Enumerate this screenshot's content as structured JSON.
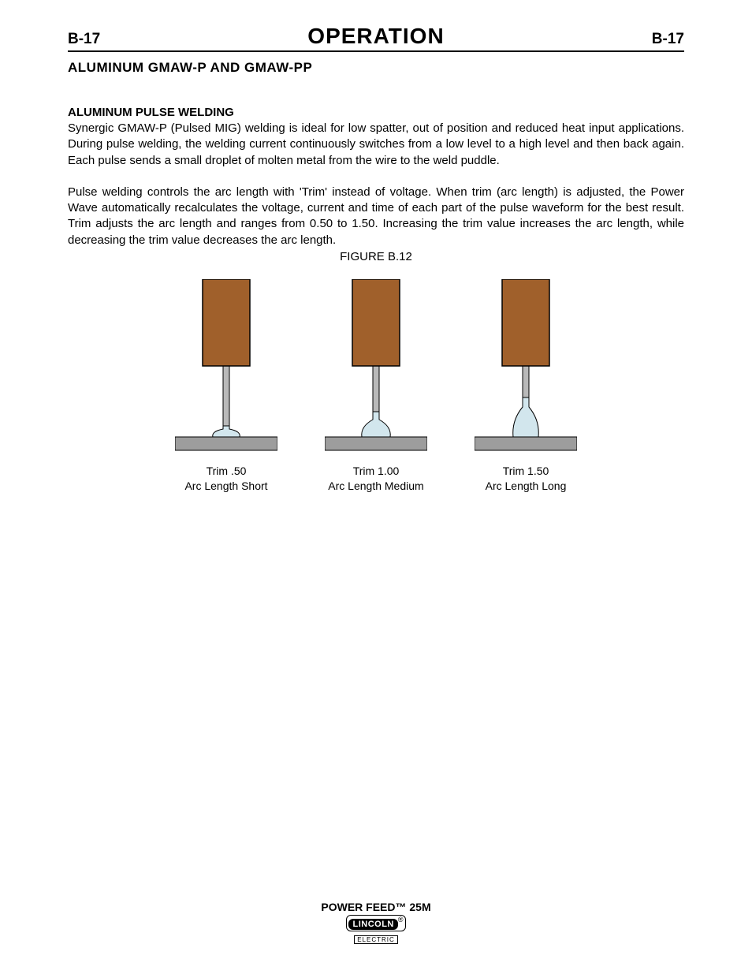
{
  "header": {
    "left_code": "B-17",
    "title": "OPERATION",
    "right_code": "B-17"
  },
  "section": {
    "heading": "ALUMINUM GMAW-P AND GMAW-PP",
    "sub_heading": "ALUMINUM PULSE WELDING",
    "paragraph1": "Synergic GMAW-P (Pulsed MIG) welding is ideal for low spatter, out of position and reduced heat input applications. During pulse welding, the welding current continuously switches from a low level to a high level and then back again.  Each pulse sends a small droplet of molten metal from the wire to the weld puddle.",
    "paragraph2": "Pulse welding controls the arc length with 'Trim' instead of voltage.  When trim (arc length) is adjusted, the Power Wave automatically recalculates the voltage, current and time of each part of the pulse waveform for the best result.  Trim adjusts the arc length and ranges from 0.50 to 1.50. Increasing the trim value increases the arc length, while decreasing the trim value decreases the arc length.",
    "figure_caption": "FIGURE B.12"
  },
  "figure": {
    "colors": {
      "nozzle_fill": "#a0602b",
      "nozzle_stroke": "#000000",
      "wire_fill": "#b9b9b9",
      "wire_stroke": "#000000",
      "plate_fill": "#9d9d9d",
      "plate_stroke": "#000000",
      "arc_fill": "#d2e6ed",
      "arc_stroke": "#000000"
    },
    "items": [
      {
        "trim_line1": "Trim .50",
        "trim_line2": "Arc Length Short",
        "wire_len": 76,
        "arc_h": 14,
        "arc_w": 34
      },
      {
        "trim_line1": "Trim 1.00",
        "trim_line2": "Arc Length Medium",
        "wire_len": 58,
        "arc_h": 26,
        "arc_w": 36
      },
      {
        "trim_line1": "Trim 1.50",
        "trim_line2": "Arc Length Long",
        "wire_len": 40,
        "arc_h": 42,
        "arc_w": 32
      }
    ]
  },
  "footer": {
    "product": "POWER FEED™ 25M",
    "logo_main": "LINCOLN",
    "logo_sub": "ELECTRIC"
  }
}
